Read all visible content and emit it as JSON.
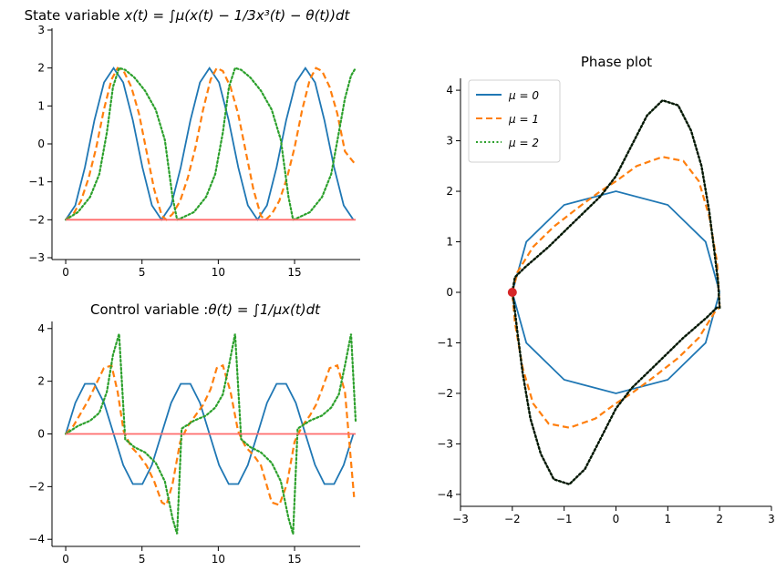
{
  "chart_data": [
    {
      "type": "line",
      "title_prefix": "State variable ",
      "title_math": "x(t) = ∫μ(x(t) − 1/3x³(t) − θ(t))dt",
      "xlabel": "",
      "ylabel": "",
      "xlim": [
        -0.9,
        19.3
      ],
      "ylim": [
        -3,
        3
      ],
      "xticks": [
        "0",
        "5",
        "10",
        "15"
      ],
      "yticks": [
        "−3",
        "−2",
        "−1",
        "0",
        "1",
        "2",
        "3"
      ],
      "grid": false,
      "series": [
        {
          "name": "μ = 0",
          "color": "#1f77b4",
          "style": "solid",
          "x": [
            0,
            0.63,
            1.26,
            1.88,
            2.51,
            3.14,
            3.77,
            4.4,
            5.03,
            5.65,
            6.28,
            6.91,
            7.54,
            8.17,
            8.8,
            9.42,
            10.05,
            10.68,
            11.31,
            11.94,
            12.57,
            13.19,
            13.82,
            14.45,
            15.08,
            15.71,
            16.34,
            16.96,
            17.59,
            18.22,
            18.85
          ],
          "y": [
            -2,
            -1.62,
            -0.62,
            0.62,
            1.62,
            2,
            1.62,
            0.62,
            -0.62,
            -1.62,
            -2,
            -1.62,
            -0.62,
            0.62,
            1.62,
            2,
            1.62,
            0.62,
            -0.62,
            -1.62,
            -2,
            -1.62,
            -0.62,
            0.62,
            1.62,
            2,
            1.62,
            0.62,
            -0.62,
            -1.62,
            -2
          ]
        },
        {
          "name": "μ = 1",
          "color": "#ff7f0e",
          "style": "dashed",
          "x": [
            0,
            0.5,
            1.0,
            1.5,
            2.0,
            2.5,
            3.0,
            3.4,
            3.8,
            4.3,
            4.8,
            5.3,
            5.8,
            6.3,
            6.6,
            7.0,
            7.5,
            8.0,
            8.5,
            9.0,
            9.5,
            9.9,
            10.3,
            10.8,
            11.3,
            11.8,
            12.3,
            12.8,
            13.1,
            13.5,
            14.0,
            14.5,
            15.0,
            15.5,
            16.0,
            16.4,
            16.8,
            17.3,
            17.8,
            18.3,
            18.9
          ],
          "y": [
            -2,
            -1.85,
            -1.5,
            -0.9,
            -0.1,
            0.9,
            1.7,
            2.0,
            1.92,
            1.5,
            0.8,
            -0.2,
            -1.2,
            -1.9,
            -2.0,
            -1.85,
            -1.5,
            -0.9,
            -0.1,
            0.9,
            1.7,
            2.0,
            1.92,
            1.5,
            0.8,
            -0.2,
            -1.2,
            -1.9,
            -2.0,
            -1.85,
            -1.5,
            -0.9,
            -0.1,
            0.9,
            1.7,
            2.0,
            1.92,
            1.5,
            0.8,
            -0.2,
            -0.5
          ]
        },
        {
          "name": "μ = 2",
          "color": "#2ca02c",
          "style": "dotted",
          "x": [
            0,
            0.8,
            1.6,
            2.2,
            2.7,
            3.1,
            3.5,
            3.9,
            4.5,
            5.2,
            5.9,
            6.5,
            7.0,
            7.3,
            7.6,
            8.4,
            9.2,
            9.8,
            10.3,
            10.7,
            11.1,
            11.5,
            12.1,
            12.8,
            13.5,
            14.1,
            14.6,
            14.9,
            15.2,
            16.0,
            16.8,
            17.4,
            17.9,
            18.3,
            18.7,
            19.0
          ],
          "y": [
            -2,
            -1.8,
            -1.4,
            -0.8,
            0.3,
            1.5,
            2.0,
            1.95,
            1.75,
            1.4,
            0.9,
            0.1,
            -1.4,
            -2.0,
            -1.95,
            -1.8,
            -1.4,
            -0.8,
            0.3,
            1.5,
            2.0,
            1.95,
            1.75,
            1.4,
            0.9,
            0.1,
            -1.4,
            -2.0,
            -1.95,
            -1.8,
            -1.4,
            -0.8,
            0.3,
            1.2,
            1.8,
            2.0
          ]
        },
        {
          "name": "",
          "color": "#ff6b6b",
          "style": "solid",
          "x": [
            0,
            19
          ],
          "y": [
            -2,
            -2
          ]
        }
      ]
    },
    {
      "type": "line",
      "title_prefix": "Control variable :",
      "title_math": "θ(t) = ∫1/μx(t)dt",
      "xlabel": "",
      "ylabel": "",
      "xlim": [
        -0.9,
        19.3
      ],
      "ylim": [
        -4.2,
        4.2
      ],
      "xticks": [
        "0",
        "5",
        "10",
        "15"
      ],
      "yticks": [
        "−4",
        "−2",
        "0",
        "2",
        "4"
      ],
      "grid": false,
      "series": [
        {
          "name": "μ = 0",
          "color": "#1f77b4",
          "style": "solid",
          "x": [
            0,
            0.63,
            1.26,
            1.88,
            2.51,
            3.14,
            3.77,
            4.4,
            5.03,
            5.65,
            6.28,
            6.91,
            7.54,
            8.17,
            8.8,
            9.42,
            10.05,
            10.68,
            11.31,
            11.94,
            12.57,
            13.19,
            13.82,
            14.45,
            15.08,
            15.71,
            16.34,
            16.96,
            17.59,
            18.22,
            18.85
          ],
          "y": [
            0,
            1.18,
            1.9,
            1.9,
            1.18,
            0,
            -1.18,
            -1.9,
            -1.9,
            -1.18,
            0,
            1.18,
            1.9,
            1.9,
            1.18,
            0,
            -1.18,
            -1.9,
            -1.9,
            -1.18,
            0,
            1.18,
            1.9,
            1.9,
            1.18,
            0,
            -1.18,
            -1.9,
            -1.9,
            -1.18,
            0
          ]
        },
        {
          "name": "μ = 1",
          "color": "#ff7f0e",
          "style": "dashed",
          "x": [
            0,
            0.5,
            1.0,
            1.5,
            2.0,
            2.5,
            3.0,
            3.4,
            3.8,
            4.3,
            4.8,
            5.3,
            5.8,
            6.3,
            6.6,
            7.0,
            7.5,
            8.0,
            8.5,
            9.0,
            9.5,
            9.9,
            10.3,
            10.8,
            11.3,
            11.8,
            12.3,
            12.8,
            13.1,
            13.5,
            14.0,
            14.5,
            15.0,
            15.5,
            16.0,
            16.4,
            16.8,
            17.3,
            17.8,
            18.3,
            18.9
          ],
          "y": [
            0,
            0.3,
            0.8,
            1.3,
            1.9,
            2.5,
            2.6,
            1.6,
            0.1,
            -0.5,
            -0.8,
            -1.2,
            -1.8,
            -2.6,
            -2.7,
            -1.9,
            -0.3,
            0.3,
            0.7,
            1.1,
            1.7,
            2.5,
            2.6,
            1.6,
            0.1,
            -0.5,
            -0.8,
            -1.2,
            -1.8,
            -2.6,
            -2.7,
            -1.9,
            -0.3,
            0.3,
            0.7,
            1.1,
            1.7,
            2.5,
            2.6,
            1.6,
            -2.4
          ]
        },
        {
          "name": "μ = 2",
          "color": "#2ca02c",
          "style": "dotted",
          "x": [
            0,
            0.8,
            1.6,
            2.2,
            2.7,
            3.1,
            3.5,
            3.9,
            4.5,
            5.2,
            5.9,
            6.5,
            7.0,
            7.3,
            7.6,
            8.4,
            9.2,
            9.8,
            10.3,
            10.7,
            11.1,
            11.5,
            12.1,
            12.8,
            13.5,
            14.1,
            14.6,
            14.9,
            15.2,
            16.0,
            16.8,
            17.4,
            17.9,
            18.3,
            18.7,
            19.0
          ],
          "y": [
            0,
            0.3,
            0.5,
            0.8,
            1.6,
            3.0,
            3.8,
            -0.2,
            -0.5,
            -0.7,
            -1.1,
            -1.8,
            -3.2,
            -3.8,
            0.2,
            0.5,
            0.7,
            1.0,
            1.5,
            2.6,
            3.8,
            -0.2,
            -0.5,
            -0.7,
            -1.1,
            -1.8,
            -3.2,
            -3.8,
            0.2,
            0.5,
            0.7,
            1.0,
            1.5,
            2.6,
            3.8,
            0.5
          ]
        },
        {
          "name": "",
          "color": "#ff6b6b",
          "style": "solid",
          "x": [
            0,
            19
          ],
          "y": [
            0,
            0
          ]
        }
      ]
    },
    {
      "type": "line",
      "title": "Phase plot",
      "xlabel": "",
      "ylabel": "",
      "xlim": [
        -3,
        3
      ],
      "ylim": [
        -4.2,
        4.2
      ],
      "xticks": [
        "−3",
        "−2",
        "−1",
        "0",
        "1",
        "2",
        "3"
      ],
      "yticks": [
        "−4",
        "−3",
        "−2",
        "−1",
        "0",
        "1",
        "2",
        "3",
        "4"
      ],
      "grid": false,
      "legend": "top-left",
      "series": [
        {
          "name": "μ = 0",
          "color": "#1f77b4",
          "style": "solid",
          "x": [
            2,
            1.73,
            1,
            0,
            -1,
            -1.73,
            -2,
            -1.73,
            -1,
            0,
            1,
            1.73,
            2
          ],
          "y": [
            0,
            1,
            1.73,
            2,
            1.73,
            1,
            0,
            -1,
            -1.73,
            -2,
            -1.73,
            -1,
            0
          ]
        },
        {
          "name": "μ = 1",
          "color": "#ff7f0e",
          "style": "dashed",
          "x": [
            -2,
            -1.9,
            -1.6,
            -1.2,
            -0.7,
            -0.3,
            0,
            0.4,
            0.9,
            1.3,
            1.6,
            1.8,
            1.95,
            2,
            1.9,
            1.6,
            1.2,
            0.7,
            0.3,
            0,
            -0.4,
            -0.9,
            -1.3,
            -1.6,
            -1.8,
            -1.95,
            -2
          ],
          "y": [
            0,
            0.4,
            0.9,
            1.3,
            1.7,
            2.0,
            2.2,
            2.5,
            2.68,
            2.6,
            2.2,
            1.5,
            0.6,
            -0.3,
            -0.4,
            -0.9,
            -1.3,
            -1.7,
            -2.0,
            -2.2,
            -2.5,
            -2.68,
            -2.6,
            -2.2,
            -1.5,
            -0.6,
            0
          ]
        },
        {
          "name": "μ = 2",
          "color": "#2ca02c",
          "style": "dotted",
          "x": [
            -2,
            -1.95,
            -1.75,
            -1.3,
            -0.8,
            -0.3,
            0,
            0.3,
            0.6,
            0.9,
            1.2,
            1.45,
            1.65,
            1.8,
            1.9,
            1.97,
            2,
            1.95,
            1.75,
            1.3,
            0.8,
            0.3,
            0,
            -0.3,
            -0.6,
            -0.9,
            -1.2,
            -1.45,
            -1.65,
            -1.8,
            -1.9,
            -1.97,
            -2
          ],
          "y": [
            0,
            0.3,
            0.5,
            0.9,
            1.4,
            1.9,
            2.3,
            2.9,
            3.5,
            3.8,
            3.7,
            3.2,
            2.5,
            1.6,
            0.8,
            0.2,
            -0.3,
            -0.3,
            -0.5,
            -0.9,
            -1.4,
            -1.9,
            -2.3,
            -2.9,
            -3.5,
            -3.8,
            -3.7,
            -3.2,
            -2.5,
            -1.6,
            -0.8,
            -0.2,
            0
          ]
        },
        {
          "name": "",
          "color": "#000000",
          "style": "dotted",
          "x": [
            -2,
            -1.95,
            -1.75,
            -1.3,
            -0.8,
            -0.3,
            0,
            0.3,
            0.6,
            0.9,
            1.2,
            1.45,
            1.65,
            1.8,
            1.9,
            1.97,
            2,
            1.95,
            1.75,
            1.3,
            0.8,
            0.3,
            0,
            -0.3,
            -0.6,
            -0.9,
            -1.2,
            -1.45,
            -1.65,
            -1.8,
            -1.9,
            -1.97,
            -2
          ],
          "y": [
            0,
            0.3,
            0.5,
            0.9,
            1.4,
            1.9,
            2.3,
            2.9,
            3.5,
            3.8,
            3.7,
            3.2,
            2.5,
            1.6,
            0.8,
            0.2,
            -0.3,
            -0.3,
            -0.5,
            -0.9,
            -1.4,
            -1.9,
            -2.3,
            -2.9,
            -3.5,
            -3.8,
            -3.7,
            -3.2,
            -2.5,
            -1.6,
            -0.8,
            -0.2,
            0
          ]
        }
      ],
      "points": [
        {
          "x": -2,
          "y": 0,
          "color": "#d62728"
        }
      ]
    }
  ]
}
